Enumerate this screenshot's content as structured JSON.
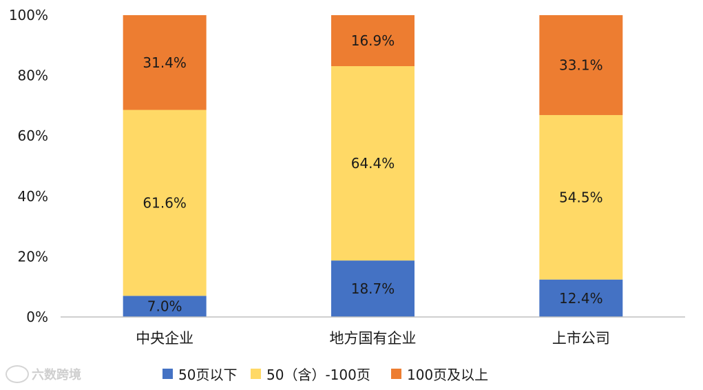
{
  "chart_data": {
    "type": "bar",
    "stacked": true,
    "categories": [
      "中央企业",
      "地方国有企业",
      "上市公司"
    ],
    "series": [
      {
        "name": "50页以下",
        "color": "#4472C4",
        "values": [
          7.0,
          18.7,
          12.4
        ],
        "labels": [
          "7.0%",
          "18.7%",
          "12.4%"
        ]
      },
      {
        "name": "50（含）-100页",
        "color": "#FFD966",
        "values": [
          61.6,
          64.4,
          54.5
        ],
        "labels": [
          "61.6%",
          "64.4%",
          "54.5%"
        ]
      },
      {
        "name": "100页及以上",
        "color": "#ED7D31",
        "values": [
          31.4,
          16.9,
          33.1
        ],
        "labels": [
          "31.4%",
          "16.9%",
          "33.1%"
        ]
      }
    ],
    "ylim": [
      0,
      100
    ],
    "yticks": [
      "0%",
      "20%",
      "40%",
      "60%",
      "80%",
      "100%"
    ],
    "grid": false,
    "legend_position": "bottom"
  },
  "watermark": {
    "text": "六数跨境"
  }
}
